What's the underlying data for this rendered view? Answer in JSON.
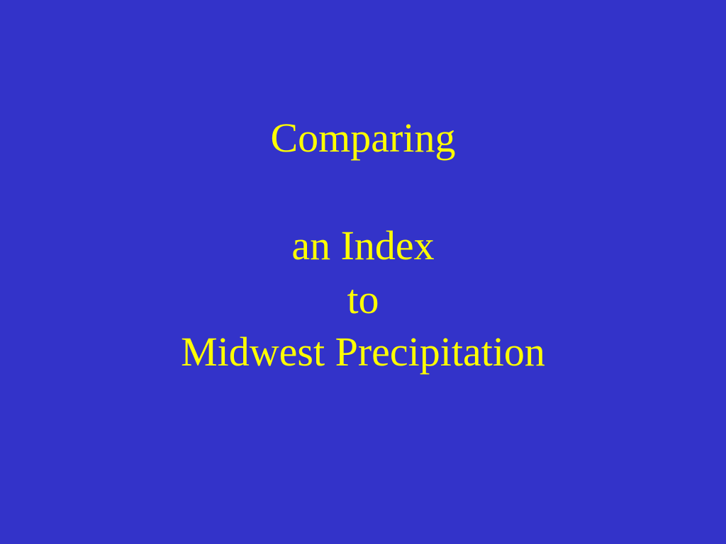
{
  "slide": {
    "lines": [
      "Comparing",
      "an Index",
      "to",
      "Midwest Precipitation"
    ]
  },
  "colors": {
    "background": "#3333c9",
    "text": "#ffff00"
  }
}
